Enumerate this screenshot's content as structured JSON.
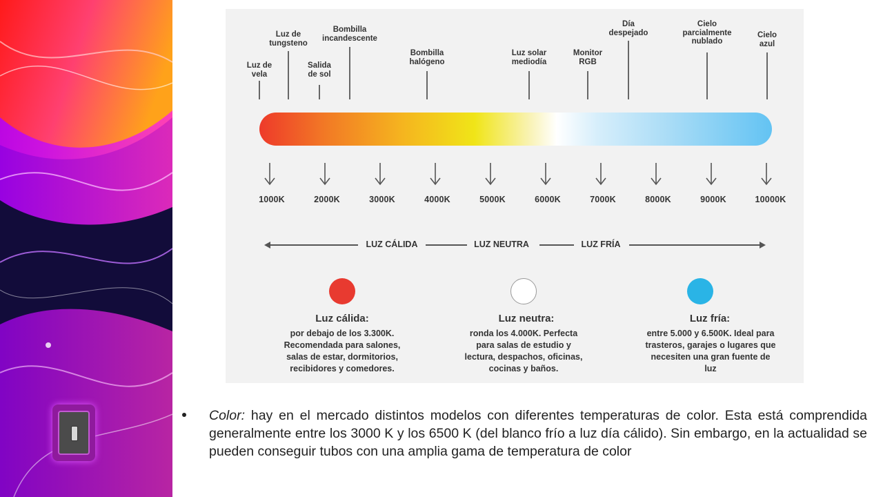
{
  "diagram": {
    "light_sources": [
      {
        "label": "Luz de\nvela"
      },
      {
        "label": "Luz de\ntungsteno"
      },
      {
        "label": "Salida\nde sol"
      },
      {
        "label": "Bombilla\nincandescente"
      },
      {
        "label": "Bombilla\nhalógeno"
      },
      {
        "label": "Luz solar\nmediodía"
      },
      {
        "label": "Monitor\nRGB"
      },
      {
        "label": "Día\ndespejado"
      },
      {
        "label": "Cielo\nparcialmente\nnublado"
      },
      {
        "label": "Cielo\nazul"
      }
    ],
    "kelvin_scale": [
      "1000K",
      "2000K",
      "3000K",
      "4000K",
      "5000K",
      "6000K",
      "7000K",
      "8000K",
      "9000K",
      "10000K"
    ],
    "axis_labels": {
      "warm": "LUZ CÁLIDA",
      "neutral": "LUZ NEUTRA",
      "cold": "LUZ FRÍA"
    },
    "categories": [
      {
        "title": "Luz cálida:",
        "description": "por debajo de los 3.300K. Recomendada para salones, salas de estar, dormitorios, recibidores y comedores.",
        "color": "#e83a30"
      },
      {
        "title": "Luz neutra:",
        "description": "ronda los 4.000K. Perfecta para salas de estudio y lectura, despachos, oficinas, cocinas y baños.",
        "color": "#ffffff"
      },
      {
        "title": "Luz fría:",
        "description": "entre 5.000 y 6.500K. Ideal para trasteros, garajes o lugares que necesiten una gran fuente de luz",
        "color": "#2ab4e6"
      }
    ]
  },
  "bullet": {
    "term": "Color:",
    "text": " hay en el mercado distintos modelos con diferentes temperaturas de color. Esta está comprendida generalmente entre los 3000 K y los 6500 K (del blanco frío a luz día cálido). Sin embargo, en la actualidad se pueden conseguir tubos con una amplia gama de temperatura de color"
  }
}
